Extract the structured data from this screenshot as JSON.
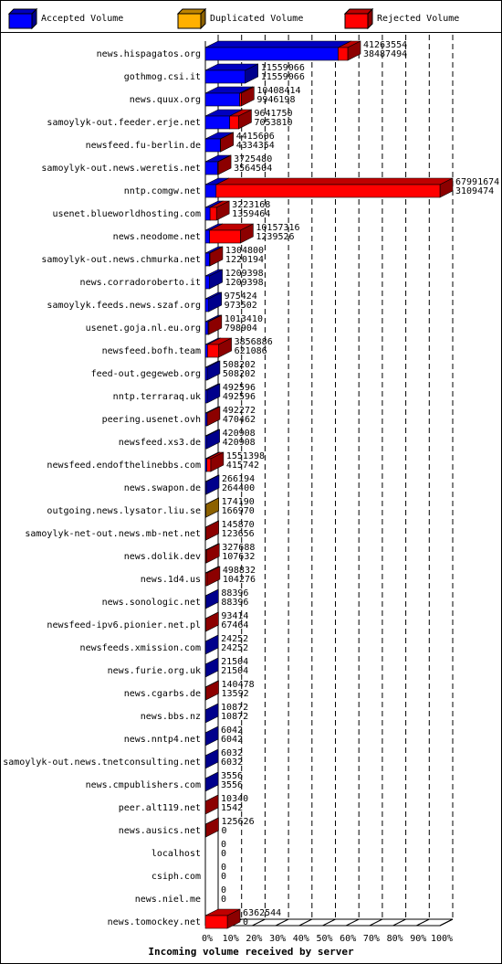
{
  "chart_data": {
    "type": "bar3d",
    "xlabel": "Incoming volume received by server",
    "series": [
      {
        "name": "Accepted Volume",
        "color": "#0000ff"
      },
      {
        "name": "Duplicated Volume",
        "color": "#ffb000"
      },
      {
        "name": "Rejected Volume",
        "color": "#ff0000"
      }
    ],
    "categories": [
      "news.hispagatos.org",
      "gothmog.csi.it",
      "news.quux.org",
      "samoylyk-out.feeder.erje.net",
      "newsfeed.fu-berlin.de",
      "samoylyk-out.news.weretis.net",
      "nntp.comgw.net",
      "usenet.blueworldhosting.com",
      "news.neodome.net",
      "samoylyk-out.news.chmurka.net",
      "news.corradoroberto.it",
      "samoylyk.feeds.news.szaf.org",
      "usenet.goja.nl.eu.org",
      "newsfeed.bofh.team",
      "feed-out.gegeweb.org",
      "nntp.terraraq.uk",
      "peering.usenet.ovh",
      "newsfeed.xs3.de",
      "newsfeed.endofthelinebbs.com",
      "news.swapon.de",
      "outgoing.news.lysator.liu.se",
      "samoylyk-net-out.news.mb-net.net",
      "news.dolik.dev",
      "news.1d4.us",
      "news.sonologic.net",
      "newsfeed-ipv6.pionier.net.pl",
      "newsfeeds.xmission.com",
      "news.furie.org.uk",
      "news.cgarbs.de",
      "news.bbs.nz",
      "news.nntp4.net",
      "samoylyk-out.news.tnetconsulting.net",
      "news.cmpublishers.com",
      "peer.alt119.net",
      "news.ausics.net",
      "localhost",
      "csiph.com",
      "news.niel.me",
      "news.tomockey.net"
    ],
    "totals": [
      41263554,
      11559066,
      10408414,
      9641750,
      4415606,
      3725480,
      67991674,
      3223168,
      10157316,
      1304800,
      1209398,
      975424,
      1013410,
      3856886,
      508202,
      492596,
      492272,
      420908,
      1551398,
      266194,
      174190,
      145870,
      327688,
      498832,
      88396,
      93414,
      24252,
      21504,
      140478,
      10872,
      6042,
      6032,
      3556,
      10340,
      125626,
      0,
      0,
      0,
      6362544
    ],
    "accepted": [
      38487494,
      11559066,
      9946198,
      7053810,
      4334354,
      3564504,
      3109474,
      1359464,
      1239526,
      1220194,
      1209398,
      973502,
      798904,
      621086,
      508202,
      492596,
      470462,
      420908,
      415742,
      264400,
      166970,
      123656,
      107632,
      104276,
      88396,
      67464,
      24252,
      21504,
      13592,
      10872,
      6042,
      6032,
      3556,
      1542,
      0,
      0,
      0,
      0,
      0
    ],
    "lower_series": [
      0,
      0,
      0,
      0,
      0,
      0,
      0,
      0,
      0,
      0,
      0,
      0,
      0,
      0,
      0,
      0,
      0,
      0,
      0,
      0,
      1,
      0,
      0,
      0,
      0,
      0,
      0,
      0,
      0,
      0,
      0,
      0,
      0,
      0,
      0,
      0,
      0,
      0,
      0
    ],
    "upper_series": [
      2,
      2,
      2,
      2,
      2,
      2,
      2,
      2,
      2,
      2,
      2,
      2,
      2,
      2,
      2,
      2,
      2,
      2,
      2,
      2,
      1,
      2,
      2,
      2,
      2,
      2,
      2,
      2,
      2,
      2,
      2,
      2,
      2,
      2,
      2,
      2,
      2,
      2,
      2
    ],
    "xlim": [
      0,
      67991674
    ],
    "xticks": [
      {
        "value": 0,
        "label": "0%"
      },
      {
        "value": 6799167.4,
        "label": "10%"
      },
      {
        "value": 13598334.8,
        "label": "20%"
      },
      {
        "value": 20397502.2,
        "label": "30%"
      },
      {
        "value": 27196669.6,
        "label": "40%"
      },
      {
        "value": 33995837,
        "label": "50%"
      },
      {
        "value": 40795004.4,
        "label": "60%"
      },
      {
        "value": 47594171.8,
        "label": "70%"
      },
      {
        "value": 54393339.2,
        "label": "80%"
      },
      {
        "value": 61192506.6,
        "label": "90%"
      },
      {
        "value": 67991674,
        "label": "100%"
      }
    ],
    "grid": true
  }
}
